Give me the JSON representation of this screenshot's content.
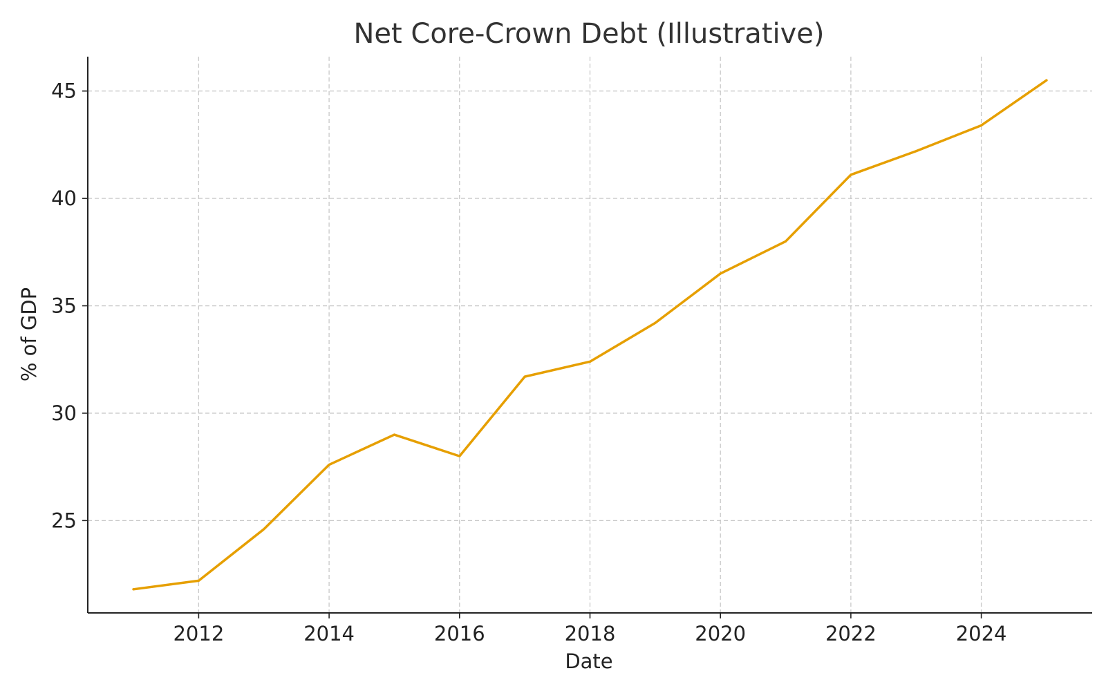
{
  "chart_data": {
    "type": "line",
    "title": "Net Core-Crown Debt (Illustrative)",
    "xlabel": "Date",
    "ylabel": "% of GDP",
    "x": [
      2011,
      2012,
      2013,
      2014,
      2015,
      2016,
      2017,
      2018,
      2019,
      2020,
      2021,
      2022,
      2023,
      2024,
      2025
    ],
    "series": [
      {
        "values": [
          21.8,
          22.2,
          24.6,
          27.6,
          29.0,
          28.0,
          31.7,
          32.4,
          34.2,
          36.5,
          38.0,
          41.1,
          42.2,
          43.4,
          45.5
        ]
      }
    ],
    "xticks": [
      "2012",
      "2014",
      "2016",
      "2018",
      "2020",
      "2022",
      "2024"
    ],
    "xtick_values": [
      2012,
      2014,
      2016,
      2018,
      2020,
      2022,
      2024
    ],
    "yticks": [
      "25",
      "30",
      "35",
      "40",
      "45"
    ],
    "ytick_values": [
      25,
      30,
      35,
      40,
      45
    ],
    "xlim": [
      2010.3,
      2025.7
    ],
    "ylim": [
      20.7,
      46.6
    ],
    "grid": true,
    "line_color": "#e69f00"
  }
}
